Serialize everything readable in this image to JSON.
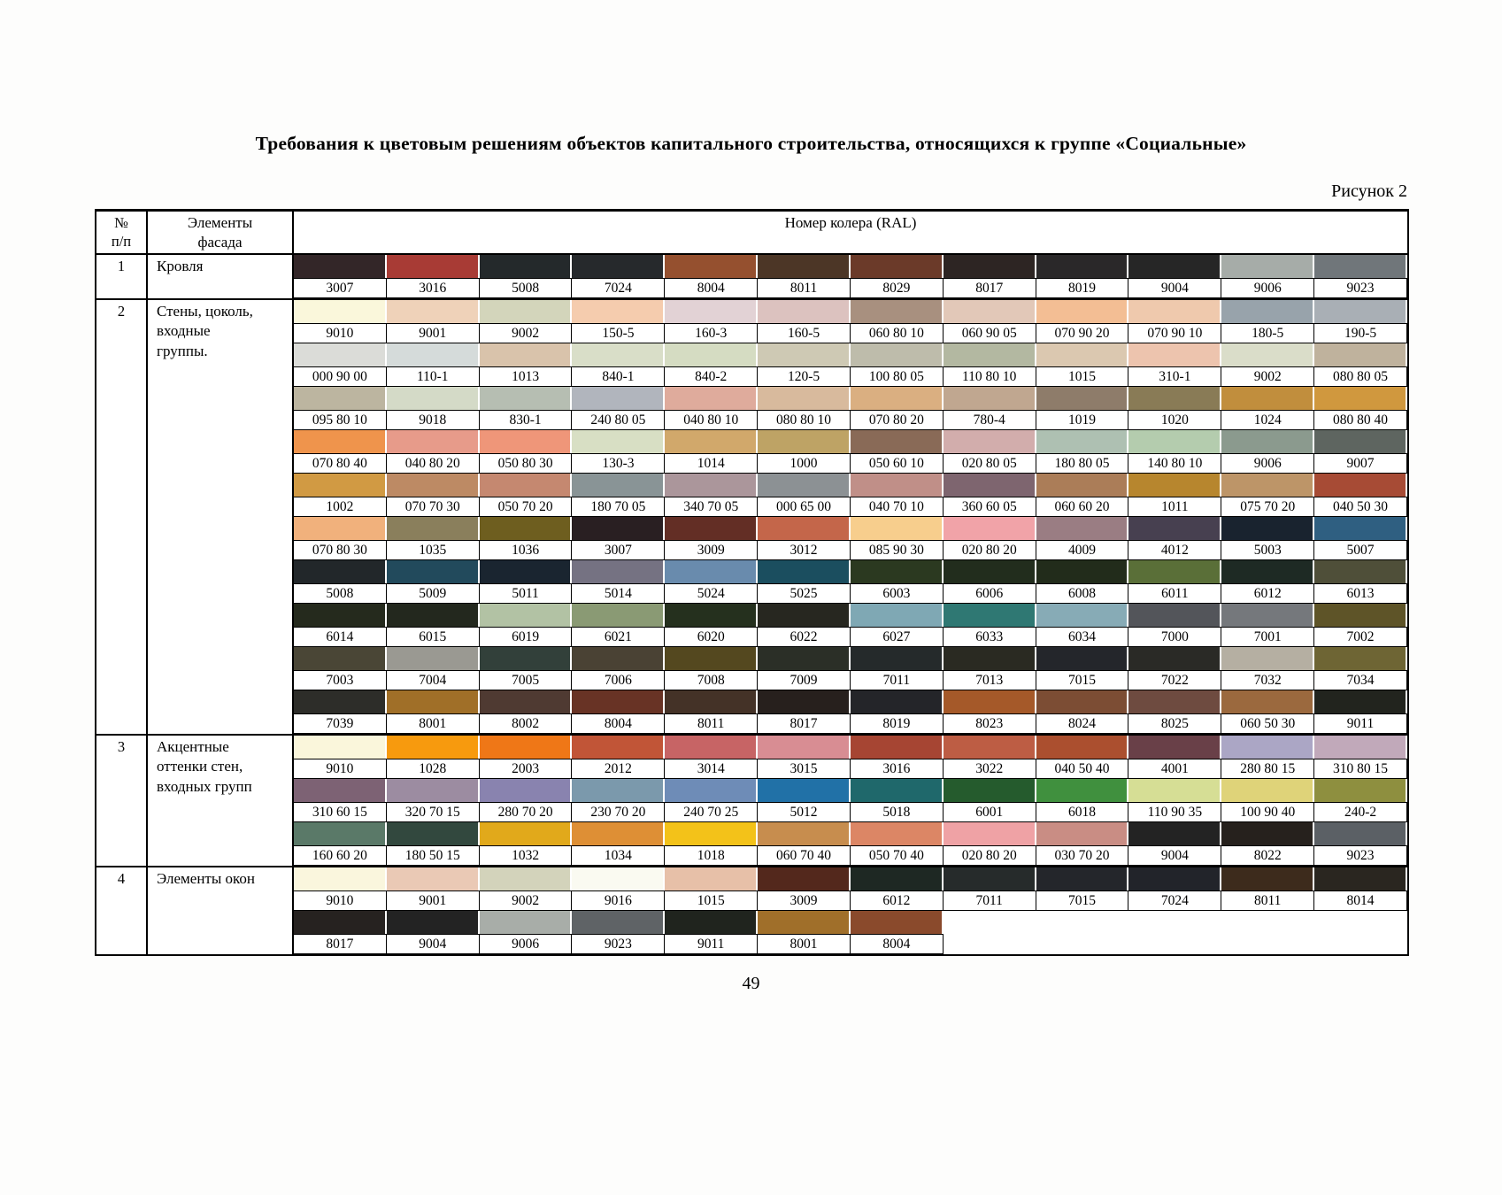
{
  "title": "Требования к цветовым решениям объектов капитального строительства, относящихся к группе «Социальные»",
  "figure_label": "Рисунок 2",
  "page_number": "49",
  "table": {
    "headers": {
      "num": "№\nп/п",
      "element": "Элементы\nфасада",
      "colors": "Номер колера (RAL)"
    },
    "rows": [
      {
        "num": "1",
        "element": "Кровля",
        "groups": [
          [
            [
              "3007",
              "#332628"
            ],
            [
              "3016",
              "#A83B35"
            ],
            [
              "5008",
              "#24292B"
            ],
            [
              "7024",
              "#26292C"
            ],
            [
              "8004",
              "#95502F"
            ],
            [
              "8011",
              "#4C3626"
            ],
            [
              "8029",
              "#6B3A29"
            ],
            [
              "8017",
              "#2D2523"
            ],
            [
              "8019",
              "#2A2829"
            ],
            [
              "9004",
              "#262626"
            ],
            [
              "9006",
              "#A6ACA8"
            ],
            [
              "9023",
              "#70767A"
            ]
          ]
        ]
      },
      {
        "num": "2",
        "element": "Стены, цоколь,\nвходные\nгруппы.",
        "groups": [
          [
            [
              "9010",
              "#FAF7DB"
            ],
            [
              "9001",
              "#EFD2B9"
            ],
            [
              "9002",
              "#D3D5BB"
            ],
            [
              "150-5",
              "#F5CCAE"
            ],
            [
              "160-3",
              "#E2D2D5"
            ],
            [
              "160-5",
              "#DCC2BF"
            ],
            [
              "060 80 10",
              "#A8907F"
            ],
            [
              "060 90 05",
              "#E2C8B8"
            ],
            [
              "070 90 20",
              "#F3BE94"
            ],
            [
              "070 90 10",
              "#EFC9AD"
            ],
            [
              "180-5",
              "#98A3AB"
            ],
            [
              "190-5",
              "#A9AFB5"
            ]
          ],
          [
            [
              "000 90 00",
              "#DBDCD8"
            ],
            [
              "110-1",
              "#D5DBDA"
            ],
            [
              "1013",
              "#D9C3AB"
            ],
            [
              "840-1",
              "#D9DEC8"
            ],
            [
              "840-2",
              "#D5DCC2"
            ],
            [
              "120-5",
              "#CEC9B4"
            ],
            [
              "100 80 05",
              "#BEBCAB"
            ],
            [
              "110 80 10",
              "#B3B8A1"
            ],
            [
              "1015",
              "#DBC8B0"
            ],
            [
              "310-1",
              "#EDC4AE"
            ],
            [
              "9002",
              "#DADDC9"
            ],
            [
              "080 80 05",
              "#BFB29D"
            ]
          ],
          [
            [
              "095 80 10",
              "#BCB5A0"
            ],
            [
              "9018",
              "#D4DAC7"
            ],
            [
              "830-1",
              "#B6BEB2"
            ],
            [
              "240 80 05",
              "#B1B5BD"
            ],
            [
              "040 80 10",
              "#DFAB9C"
            ],
            [
              "080 80 10",
              "#D8BA9D"
            ],
            [
              "070 80 20",
              "#DAAF81"
            ],
            [
              "780-4",
              "#C0A790"
            ],
            [
              "1019",
              "#8E7C6A"
            ],
            [
              "1020",
              "#897B56"
            ],
            [
              "1024",
              "#C18E3D"
            ],
            [
              "080 80 40",
              "#D0983E"
            ]
          ],
          [
            [
              "070 80 40",
              "#EF944C"
            ],
            [
              "040 80 20",
              "#E79B8A"
            ],
            [
              "050 80 30",
              "#EF9679"
            ],
            [
              "130-3",
              "#D8DFC4"
            ],
            [
              "1014",
              "#D1A86B"
            ],
            [
              "1000",
              "#BEA365"
            ],
            [
              "050 60 10",
              "#896A57"
            ],
            [
              "020 80 05",
              "#D2ADAC"
            ],
            [
              "180 80 05",
              "#AEC0B2"
            ],
            [
              "140 80 10",
              "#B4CCAE"
            ],
            [
              "9006",
              "#8B9A8E"
            ],
            [
              "9007",
              "#5E6560"
            ]
          ],
          [
            [
              "1002",
              "#D19A43"
            ],
            [
              "070 70 30",
              "#BD8A64"
            ],
            [
              "050 70 20",
              "#C58870"
            ],
            [
              "180 70 05",
              "#899496"
            ],
            [
              "340 70 05",
              "#AB969B"
            ],
            [
              "000 65 00",
              "#8C9194"
            ],
            [
              "040 70 10",
              "#C08F88"
            ],
            [
              "360 60 05",
              "#7E656F"
            ],
            [
              "060 60 20",
              "#AB7D58"
            ],
            [
              "1011",
              "#B7862E"
            ],
            [
              "075 70 20",
              "#BD9568"
            ],
            [
              "040 50 30",
              "#A74B35"
            ]
          ],
          [
            [
              "070 80 30",
              "#F1B17C"
            ],
            [
              "1035",
              "#8A7F5C"
            ],
            [
              "1036",
              "#6E5E1F"
            ],
            [
              "3007",
              "#291F22"
            ],
            [
              "3009",
              "#632E25"
            ],
            [
              "3012",
              "#C4664A"
            ],
            [
              "085 90 30",
              "#F7CE8D"
            ],
            [
              "020 80 20",
              "#F1A3A8"
            ],
            [
              "4009",
              "#9A7D83"
            ],
            [
              "4012",
              "#474050"
            ],
            [
              "5003",
              "#19232F"
            ],
            [
              "5007",
              "#2F5F81"
            ]
          ],
          [
            [
              "5008",
              "#22272A"
            ],
            [
              "5009",
              "#224A5C"
            ],
            [
              "5011",
              "#1A2530"
            ],
            [
              "5014",
              "#757282"
            ],
            [
              "5024",
              "#698BAD"
            ],
            [
              "5025",
              "#1B4E5F"
            ],
            [
              "6003",
              "#2B3920"
            ],
            [
              "6006",
              "#222D1D"
            ],
            [
              "6008",
              "#222C1B"
            ],
            [
              "6011",
              "#5A6F38"
            ],
            [
              "6012",
              "#1E2A24"
            ],
            [
              "6013",
              "#4F4F39"
            ]
          ],
          [
            [
              "6014",
              "#252A1D"
            ],
            [
              "6015",
              "#23281E"
            ],
            [
              "6019",
              "#B2C2A4"
            ],
            [
              "6021",
              "#8A9A74"
            ],
            [
              "6020",
              "#25301E"
            ],
            [
              "6022",
              "#272720"
            ],
            [
              "6027",
              "#7FA8B4"
            ],
            [
              "6033",
              "#2F7873"
            ],
            [
              "6034",
              "#87ABB6"
            ],
            [
              "7000",
              "#53555A"
            ],
            [
              "7001",
              "#75787C"
            ],
            [
              "7002",
              "#5E5428"
            ]
          ],
          [
            [
              "7003",
              "#4A4636"
            ],
            [
              "7004",
              "#9A9992"
            ],
            [
              "7005",
              "#32403A"
            ],
            [
              "7006",
              "#4A4234"
            ],
            [
              "7008",
              "#54481F"
            ],
            [
              "7009",
              "#2B2F27"
            ],
            [
              "7011",
              "#252A2B"
            ],
            [
              "7013",
              "#2A2A22"
            ],
            [
              "7015",
              "#24262B"
            ],
            [
              "7022",
              "#2A2A26"
            ],
            [
              "7032",
              "#B5AFA2"
            ],
            [
              "7034",
              "#6E6534"
            ]
          ],
          [
            [
              "7039",
              "#2D2D29"
            ],
            [
              "8001",
              "#A06F28"
            ],
            [
              "8002",
              "#4F3A32"
            ],
            [
              "8004",
              "#683325"
            ],
            [
              "8011",
              "#443227"
            ],
            [
              "8017",
              "#27201D"
            ],
            [
              "8019",
              "#242529"
            ],
            [
              "8023",
              "#A55929"
            ],
            [
              "8024",
              "#7C4D34"
            ],
            [
              "8025",
              "#6E4B40"
            ],
            [
              "060 50 30",
              "#9B693E"
            ],
            [
              "9011",
              "#22241E"
            ]
          ]
        ]
      },
      {
        "num": "3",
        "element": "Акцентные\nоттенки стен,\nвходных групп",
        "groups": [
          [
            [
              "9010",
              "#FAF6DB"
            ],
            [
              "1028",
              "#F79A0E"
            ],
            [
              "2003",
              "#EF7717"
            ],
            [
              "2012",
              "#C15537"
            ],
            [
              "3014",
              "#C76465"
            ],
            [
              "3015",
              "#D88D93"
            ],
            [
              "3016",
              "#A64533"
            ],
            [
              "3022",
              "#BD5D44"
            ],
            [
              "040 50 40",
              "#AB4F2F"
            ],
            [
              "4001",
              "#694048"
            ],
            [
              "280 80 15",
              "#ABA6C5"
            ],
            [
              "310 80 15",
              "#C1A9BA"
            ]
          ],
          [
            [
              "310 60 15",
              "#7D6274"
            ],
            [
              "320 70 15",
              "#9C8CA1"
            ],
            [
              "280 70 20",
              "#8983AF"
            ],
            [
              "230 70 20",
              "#7B99AC"
            ],
            [
              "240 70 25",
              "#6E8CB7"
            ],
            [
              "5012",
              "#2171A7"
            ],
            [
              "5018",
              "#1F686B"
            ],
            [
              "6001",
              "#255B2D"
            ],
            [
              "6018",
              "#40903E"
            ],
            [
              "110 90 35",
              "#D6DE95"
            ],
            [
              "100 90 40",
              "#DFD379"
            ],
            [
              "240-2",
              "#8E8F3F"
            ]
          ],
          [
            [
              "160 60 20",
              "#5A7968"
            ],
            [
              "180 50 15",
              "#32483E"
            ],
            [
              "1032",
              "#E1A91B"
            ],
            [
              "1034",
              "#DE8F35"
            ],
            [
              "1018",
              "#F3C219"
            ],
            [
              "060 70 40",
              "#C78D4E"
            ],
            [
              "050 70 40",
              "#DC8665"
            ],
            [
              "020 80 20",
              "#EFA2A5"
            ],
            [
              "030 70 20",
              "#C98D84"
            ],
            [
              "9004",
              "#232323"
            ],
            [
              "8022",
              "#26211D"
            ],
            [
              "9023",
              "#5B6065"
            ]
          ]
        ]
      },
      {
        "num": "4",
        "element": "Элементы окон",
        "groups": [
          [
            [
              "9010",
              "#FAF6DD"
            ],
            [
              "9001",
              "#EAC9B5"
            ],
            [
              "9002",
              "#D3D3BB"
            ],
            [
              "9016",
              "#FAFAF1"
            ],
            [
              "1015",
              "#E7C0A8"
            ],
            [
              "3009",
              "#53281C"
            ],
            [
              "6012",
              "#1E2823"
            ],
            [
              "7011",
              "#262B2B"
            ],
            [
              "7015",
              "#24262B"
            ],
            [
              "7024",
              "#22242A"
            ],
            [
              "8011",
              "#3D2B1C"
            ],
            [
              "8014",
              "#2A2620"
            ]
          ],
          [
            [
              "8017",
              "#262220"
            ],
            [
              "9004",
              "#232323"
            ],
            [
              "9006",
              "#A8ADA8"
            ],
            [
              "9023",
              "#5F6366"
            ],
            [
              "9011",
              "#20241E"
            ],
            [
              "8001",
              "#A06F2A"
            ],
            [
              "8004",
              "#8A4A2C"
            ]
          ]
        ]
      }
    ]
  }
}
